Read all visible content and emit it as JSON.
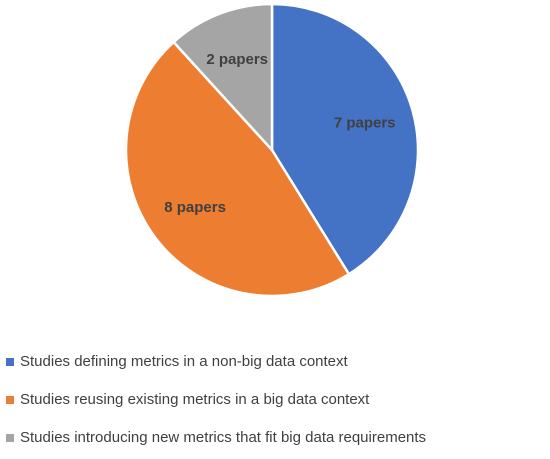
{
  "chart_data": {
    "type": "pie",
    "categories": [
      "Studies defining metrics in a non-big data context",
      "Studies reusing existing metrics in a big data context",
      "Studies introducing new metrics that fit big data requirements"
    ],
    "values": [
      7,
      8,
      2
    ],
    "value_labels": [
      "7 papers",
      "8 papers",
      "2 papers"
    ],
    "colors": [
      "#4472c4",
      "#ed7d31",
      "#a5a5a5"
    ],
    "legend": "bottom"
  }
}
